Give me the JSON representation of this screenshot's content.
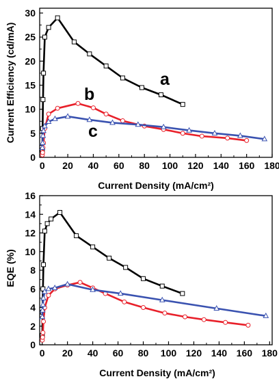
{
  "colors": {
    "a": "#000000",
    "b": "#e8202a",
    "c": "#3a52b0"
  },
  "chart_data": [
    {
      "type": "line",
      "title": "",
      "xlabel": "Current Density (mA/cm²)",
      "ylabel": "Current Efficiency (cd/mA)",
      "xlim": [
        -2,
        180
      ],
      "ylim": [
        0,
        31
      ],
      "xticks": [
        0,
        20,
        40,
        60,
        80,
        100,
        120,
        140,
        160,
        180
      ],
      "yticks": [
        0,
        5,
        10,
        15,
        20,
        25,
        30
      ],
      "grid": false,
      "legend": "none",
      "series": [
        {
          "name": "a",
          "marker": "square",
          "x": [
            0.1,
            0.3,
            0.6,
            1,
            2,
            5,
            12,
            25,
            37,
            50,
            63,
            78,
            93,
            110
          ],
          "y": [
            1.5,
            6,
            12,
            17.5,
            25,
            27,
            29,
            24,
            21.5,
            19,
            16.5,
            14.5,
            13,
            11
          ]
        },
        {
          "name": "b",
          "marker": "circle",
          "x": [
            0.1,
            0.3,
            0.6,
            1,
            2,
            5,
            12,
            28,
            40,
            50,
            63,
            80,
            95,
            110,
            125,
            145,
            160
          ],
          "y": [
            0.5,
            1,
            2,
            3,
            6,
            9,
            10.2,
            11.2,
            10.3,
            9,
            7.6,
            6.5,
            5.8,
            5,
            4.4,
            4,
            3.5
          ]
        },
        {
          "name": "c",
          "marker": "triangle",
          "x": [
            0.1,
            0.3,
            0.6,
            1,
            2,
            5,
            10,
            20,
            37,
            55,
            75,
            95,
            115,
            135,
            155,
            174
          ],
          "y": [
            2,
            3,
            4.5,
            5.5,
            6.5,
            7.4,
            8,
            8.5,
            7.8,
            7.2,
            6.8,
            6.3,
            5.6,
            5,
            4.5,
            3.8
          ]
        }
      ],
      "annotations": [
        "a",
        "b",
        "c"
      ]
    },
    {
      "type": "line",
      "title": "",
      "xlabel": "Current Density (mA/cm²)",
      "ylabel": "EQE (%)",
      "xlim": [
        -2,
        182
      ],
      "ylim": [
        0,
        16
      ],
      "xticks": [
        0,
        20,
        40,
        60,
        80,
        100,
        120,
        140,
        160,
        180
      ],
      "yticks": [
        0,
        2,
        4,
        6,
        8,
        10,
        12,
        14,
        16
      ],
      "grid": false,
      "legend": "none",
      "series": [
        {
          "name": "a",
          "marker": "square",
          "x": [
            0.1,
            0.3,
            0.6,
            1,
            2,
            4,
            7,
            14,
            27,
            40,
            53,
            66,
            80,
            95,
            111
          ],
          "y": [
            1,
            3.5,
            6,
            8.6,
            12.2,
            13,
            13.5,
            14.2,
            11.7,
            10.5,
            9.3,
            8.3,
            7.1,
            6.3,
            5.5
          ]
        },
        {
          "name": "b",
          "marker": "circle",
          "x": [
            0.1,
            0.3,
            0.6,
            1,
            2,
            5,
            10,
            20,
            30,
            40,
            50,
            65,
            80,
            97,
            113,
            128,
            145,
            163
          ],
          "y": [
            0.5,
            0.8,
            1.3,
            2.5,
            4,
            5.3,
            6,
            6.4,
            6.7,
            6.1,
            5.5,
            4.6,
            4,
            3.4,
            3,
            2.7,
            2.4,
            2.1
          ]
        },
        {
          "name": "c",
          "marker": "triangle",
          "x": [
            0.1,
            0.3,
            0.6,
            1,
            2,
            5,
            10,
            20,
            40,
            62,
            95,
            138,
            177
          ],
          "y": [
            3,
            3.7,
            4.3,
            5,
            5.7,
            6,
            6.1,
            6.5,
            5.9,
            5.5,
            4.8,
            3.9,
            3.1
          ]
        }
      ]
    }
  ]
}
